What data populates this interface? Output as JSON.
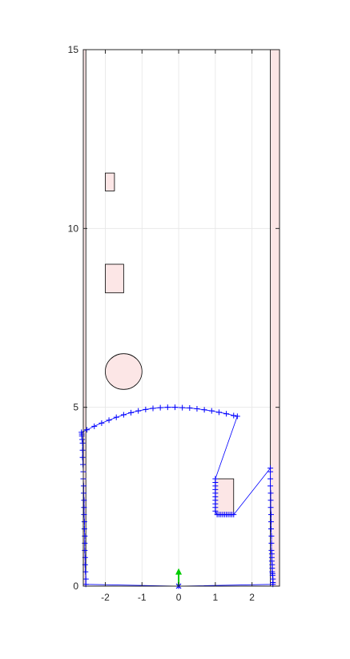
{
  "chart_data": {
    "type": "scatter",
    "title": "",
    "xlabel": "",
    "ylabel": "",
    "xlim": [
      -2.6,
      2.75
    ],
    "ylim": [
      0,
      15
    ],
    "grid": true,
    "x_ticks": [
      -2,
      -1,
      0,
      1,
      2
    ],
    "x_tick_labels": [
      "-2",
      "-1",
      "0",
      "1",
      "2"
    ],
    "y_ticks": [
      0,
      5,
      10,
      15
    ],
    "y_tick_labels": [
      "0",
      "5",
      "10",
      "15"
    ],
    "colors": {
      "obstacle_fill": "#fce6e6",
      "obstacle_edge": "#000000",
      "scan": "#0000ff",
      "heading_arrow": "#00cc00",
      "grid": "#e6e6e6",
      "axis": "#262626"
    },
    "obstacles": [
      {
        "shape": "rect",
        "x": -2.75,
        "y": 0,
        "width": 0.22,
        "height": 15
      },
      {
        "shape": "rect",
        "x": 2.5,
        "y": 0,
        "width": 0.25,
        "height": 15
      },
      {
        "shape": "rect",
        "x": -2.0,
        "y": 11.05,
        "width": 0.25,
        "height": 0.5
      },
      {
        "shape": "rect",
        "x": -2.0,
        "y": 8.2,
        "width": 0.5,
        "height": 0.8
      },
      {
        "shape": "circle",
        "cx": -1.5,
        "cy": 6.0,
        "r": 0.5
      },
      {
        "shape": "rect",
        "x": 1.0,
        "y": 2.0,
        "width": 0.5,
        "height": 1.0
      }
    ],
    "robot": {
      "x": 0,
      "y": 0,
      "heading_x": 0,
      "heading_y": 0.5
    },
    "series": [
      {
        "marker": "+",
        "x": [
          0.0,
          -2.53,
          -2.53,
          -2.54,
          -2.55,
          -2.55,
          -2.56,
          -2.56,
          -2.56,
          -2.57,
          -2.57,
          -2.58,
          -2.58,
          -2.58,
          -2.59,
          -2.59,
          -2.6,
          -2.6,
          -2.61,
          -2.62,
          -2.62,
          -2.62,
          -2.63,
          -2.64,
          -2.64,
          -2.65,
          -2.5,
          -2.3,
          -2.1,
          -1.9,
          -1.7,
          -1.5,
          -1.3,
          -1.1,
          -0.9,
          -0.7,
          -0.5,
          -0.3,
          -0.1,
          0.1,
          0.3,
          0.5,
          0.7,
          0.9,
          1.1,
          1.3,
          1.5,
          1.6,
          1.0,
          1.0,
          1.0,
          1.0,
          1.0,
          1.0,
          1.0,
          1.0,
          1.0,
          1.0,
          1.05,
          1.1,
          1.15,
          1.2,
          1.25,
          1.3,
          1.35,
          1.4,
          1.45,
          1.5,
          2.5,
          2.5,
          2.5,
          2.5,
          2.51,
          2.51,
          2.51,
          2.52,
          2.52,
          2.52,
          2.53,
          2.53,
          2.53,
          2.54,
          2.54,
          2.54,
          2.55,
          2.55,
          2.55,
          2.56,
          2.56,
          2.57,
          2.57,
          2.57,
          0.0
        ],
        "y": [
          0.0,
          0.05,
          0.2,
          0.4,
          0.6,
          0.8,
          1.0,
          1.2,
          1.4,
          1.6,
          1.8,
          2.0,
          2.2,
          2.4,
          2.6,
          2.8,
          3.0,
          3.2,
          3.4,
          3.6,
          3.8,
          4.0,
          4.1,
          4.2,
          4.25,
          4.3,
          4.37,
          4.47,
          4.56,
          4.64,
          4.72,
          4.79,
          4.85,
          4.9,
          4.94,
          4.97,
          4.99,
          5.0,
          5.0,
          4.99,
          4.98,
          4.96,
          4.93,
          4.9,
          4.86,
          4.82,
          4.77,
          4.75,
          3.0,
          2.9,
          2.8,
          2.7,
          2.6,
          2.5,
          2.4,
          2.3,
          2.2,
          2.1,
          2.0,
          2.0,
          2.0,
          2.0,
          2.0,
          2.0,
          2.0,
          2.0,
          2.0,
          2.0,
          3.3,
          3.2,
          3.0,
          2.8,
          2.6,
          2.4,
          2.2,
          2.0,
          1.8,
          1.6,
          1.4,
          1.2,
          1.0,
          0.9,
          0.8,
          0.7,
          0.6,
          0.5,
          0.4,
          0.35,
          0.3,
          0.2,
          0.1,
          0.05,
          0.0
        ]
      }
    ]
  }
}
